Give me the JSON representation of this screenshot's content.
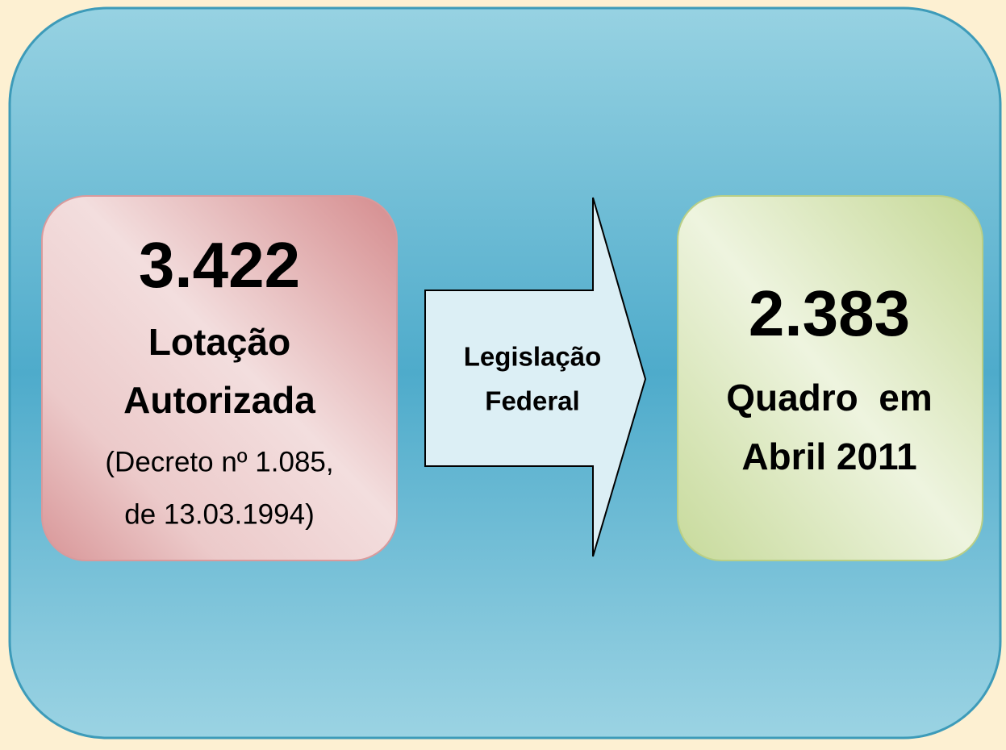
{
  "left": {
    "value": "3.422",
    "label": [
      "Lotação",
      "Autorizada"
    ],
    "note": [
      "(Decreto nº 1.085,",
      "de 13.03.1994)"
    ]
  },
  "arrow": {
    "label": [
      "Legislação",
      "Federal"
    ]
  },
  "right": {
    "value": "2.383",
    "label": [
      "Quadro  em",
      "Abril 2011"
    ]
  }
}
